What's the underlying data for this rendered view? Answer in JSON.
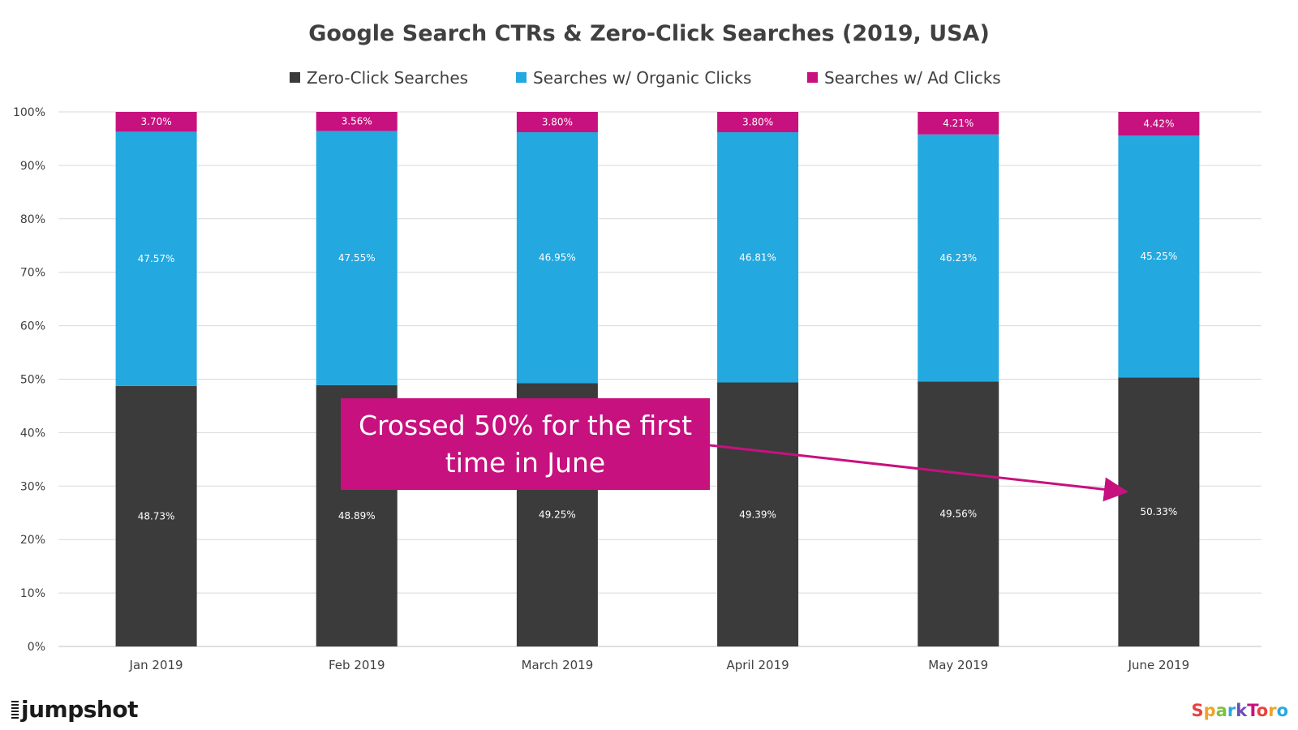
{
  "chart_data": {
    "type": "bar",
    "stacked": true,
    "title": "Google Search CTRs & Zero-Click Searches (2019, USA)",
    "categories": [
      "Jan 2019",
      "Feb 2019",
      "March 2019",
      "April 2019",
      "May 2019",
      "June 2019"
    ],
    "series": [
      {
        "name": "Zero-Click Searches",
        "color": "#3b3b3b",
        "values": [
          48.73,
          48.89,
          49.25,
          49.39,
          49.56,
          50.33
        ],
        "labels": [
          "48.73%",
          "48.89%",
          "49.25%",
          "49.39%",
          "49.56%",
          "50.33%"
        ]
      },
      {
        "name": "Searches w/ Organic Clicks",
        "color": "#23a8df",
        "values": [
          47.57,
          47.55,
          46.95,
          46.81,
          46.23,
          45.25
        ],
        "labels": [
          "47.57%",
          "47.55%",
          "46.95%",
          "46.81%",
          "46.23%",
          "45.25%"
        ]
      },
      {
        "name": "Searches w/ Ad Clicks",
        "color": "#c7117e",
        "values": [
          3.7,
          3.56,
          3.8,
          3.8,
          4.21,
          4.42
        ],
        "labels": [
          "3.70%",
          "3.56%",
          "3.80%",
          "3.80%",
          "4.21%",
          "4.42%"
        ]
      }
    ],
    "ylim": [
      0,
      100
    ],
    "yticks": [
      "0%",
      "10%",
      "20%",
      "30%",
      "40%",
      "50%",
      "60%",
      "70%",
      "80%",
      "90%",
      "100%"
    ],
    "grid": true,
    "legend_position": "top",
    "annotation": {
      "text": "Crossed 50% for the first time in June",
      "color": "#c7117e",
      "points_to": "June 2019"
    }
  },
  "branding": {
    "left_logo": "jumpshot",
    "right_logo": "SparkToro"
  }
}
